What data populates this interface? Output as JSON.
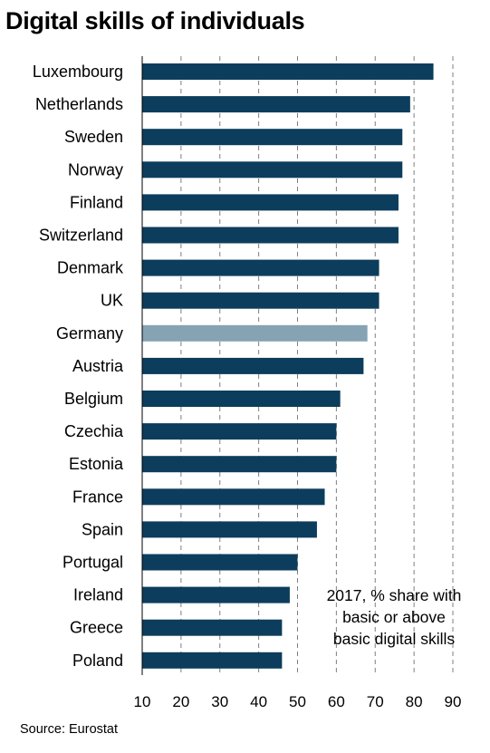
{
  "chart_data": {
    "type": "bar",
    "orientation": "horizontal",
    "title": "Digital skills of individuals",
    "categories": [
      "Luxembourg",
      "Netherlands",
      "Sweden",
      "Norway",
      "Finland",
      "Switzerland",
      "Denmark",
      "UK",
      "Germany",
      "Austria",
      "Belgium",
      "Czechia",
      "Estonia",
      "France",
      "Spain",
      "Portugal",
      "Ireland",
      "Greece",
      "Poland"
    ],
    "values": [
      85,
      79,
      77,
      77,
      76,
      76,
      71,
      71,
      68,
      67,
      61,
      60,
      60,
      57,
      55,
      50,
      48,
      46,
      46
    ],
    "highlight": "Germany",
    "xlim": [
      10,
      90
    ],
    "xticks": [
      "10",
      "20",
      "30",
      "40",
      "50",
      "60",
      "70",
      "80",
      "90"
    ],
    "grid": "vertical dashed",
    "annotation_lines": [
      "2017, % share with",
      "basic or above",
      "basic digital skills"
    ],
    "source": "Source: Eurostat",
    "colors": {
      "bar": "#0d3d5c",
      "highlight": "#86a3b4",
      "grid": "#7f7f7f",
      "axis": "#000000"
    }
  }
}
